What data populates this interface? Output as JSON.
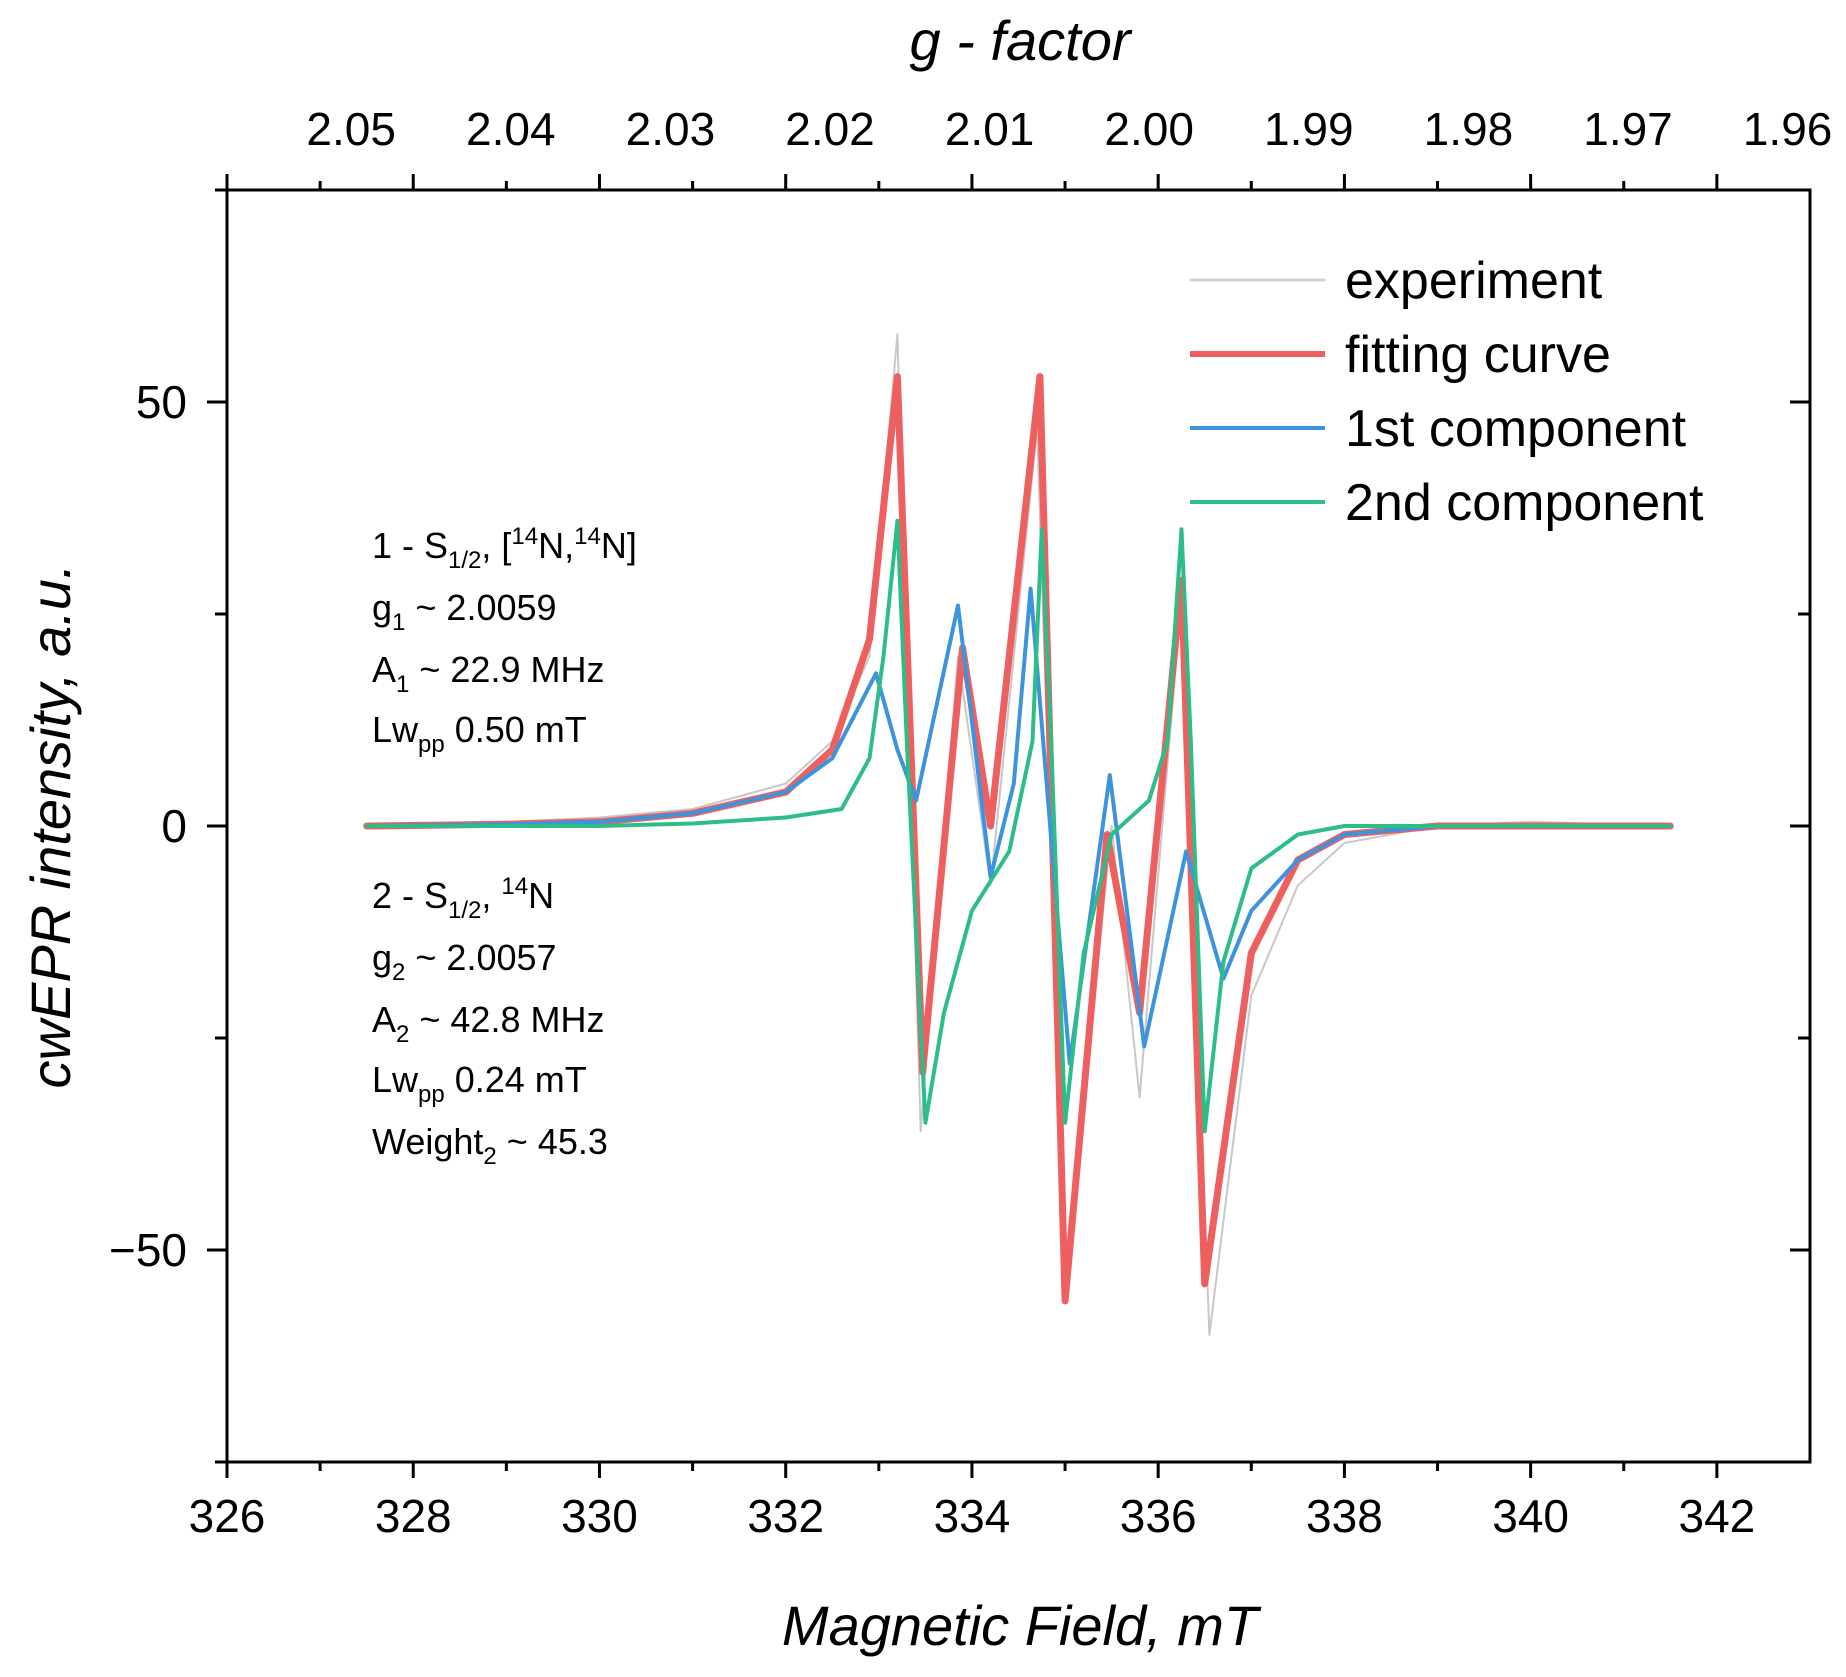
{
  "chart_data": {
    "type": "line",
    "xlabel": "Magnetic Field, mT",
    "ylabel": "cwEPR intensity, a.u.",
    "top_axis_label": "g - factor",
    "xlim": [
      326,
      343
    ],
    "ylim": [
      -75,
      75
    ],
    "x_ticks": [
      326,
      328,
      330,
      332,
      334,
      336,
      338,
      340,
      342
    ],
    "y_ticks": [
      -50,
      0,
      50
    ],
    "g_ticks": [
      "2.05",
      "2.04",
      "2.03",
      "2.02",
      "2.01",
      "2.00",
      "1.99",
      "1.98",
      "1.97",
      "1.96"
    ],
    "grid": false,
    "legend_position": "top-right",
    "series": [
      {
        "name": "experiment",
        "color": "#c8c8c8",
        "points": [
          [
            327.5,
            0
          ],
          [
            329,
            0.5
          ],
          [
            330,
            1
          ],
          [
            331,
            2
          ],
          [
            332,
            5
          ],
          [
            332.5,
            10
          ],
          [
            332.9,
            20
          ],
          [
            333.2,
            58
          ],
          [
            333.45,
            -36
          ],
          [
            333.85,
            20
          ],
          [
            334.2,
            -7
          ],
          [
            334.7,
            47
          ],
          [
            335.0,
            -55
          ],
          [
            335.5,
            0
          ],
          [
            335.8,
            -32
          ],
          [
            336.25,
            27
          ],
          [
            336.55,
            -60
          ],
          [
            337,
            -20
          ],
          [
            337.5,
            -7
          ],
          [
            338,
            -2
          ],
          [
            339,
            0
          ],
          [
            340,
            0.5
          ],
          [
            341.5,
            0
          ]
        ]
      },
      {
        "name": "fitting curve",
        "color": "#ee5f5f",
        "points": [
          [
            327.5,
            0
          ],
          [
            329,
            0.2
          ],
          [
            330,
            0.5
          ],
          [
            331,
            1.5
          ],
          [
            332,
            4
          ],
          [
            332.5,
            9
          ],
          [
            332.9,
            22
          ],
          [
            333.2,
            53
          ],
          [
            333.47,
            -29
          ],
          [
            333.9,
            21
          ],
          [
            334.2,
            0
          ],
          [
            334.73,
            53
          ],
          [
            335.0,
            -56
          ],
          [
            335.45,
            -1
          ],
          [
            335.8,
            -22
          ],
          [
            336.25,
            29
          ],
          [
            336.5,
            -54
          ],
          [
            337,
            -15
          ],
          [
            337.5,
            -4
          ],
          [
            338,
            -1
          ],
          [
            339,
            0
          ],
          [
            340,
            0
          ],
          [
            341.5,
            0
          ]
        ]
      },
      {
        "name": "1st component",
        "color": "#3d94dc",
        "points": [
          [
            327.5,
            0
          ],
          [
            329,
            0.2
          ],
          [
            330,
            0.5
          ],
          [
            331,
            1.5
          ],
          [
            332,
            4
          ],
          [
            332.5,
            8
          ],
          [
            332.97,
            18
          ],
          [
            333.2,
            9
          ],
          [
            333.4,
            3
          ],
          [
            333.85,
            26
          ],
          [
            334.2,
            -6
          ],
          [
            334.45,
            5
          ],
          [
            334.63,
            28
          ],
          [
            335.05,
            -28
          ],
          [
            335.48,
            6
          ],
          [
            335.85,
            -26
          ],
          [
            336.3,
            -3
          ],
          [
            336.7,
            -18
          ],
          [
            337,
            -10
          ],
          [
            337.5,
            -4
          ],
          [
            338,
            -1
          ],
          [
            339,
            0
          ],
          [
            340,
            0
          ],
          [
            341.5,
            0
          ]
        ]
      },
      {
        "name": "2nd component",
        "color": "#2dbd88",
        "points": [
          [
            327.5,
            0
          ],
          [
            330,
            0
          ],
          [
            331,
            0.3
          ],
          [
            332,
            1
          ],
          [
            332.6,
            2
          ],
          [
            332.9,
            8
          ],
          [
            333.05,
            20
          ],
          [
            333.2,
            36
          ],
          [
            333.3,
            10
          ],
          [
            333.5,
            -35
          ],
          [
            333.7,
            -22
          ],
          [
            334,
            -10
          ],
          [
            334.4,
            -3
          ],
          [
            334.65,
            10
          ],
          [
            334.75,
            35
          ],
          [
            334.85,
            10
          ],
          [
            335.0,
            -35
          ],
          [
            335.2,
            -15
          ],
          [
            335.5,
            -1
          ],
          [
            335.9,
            3
          ],
          [
            336.1,
            10
          ],
          [
            336.25,
            35
          ],
          [
            336.35,
            10
          ],
          [
            336.5,
            -36
          ],
          [
            336.7,
            -16
          ],
          [
            337,
            -5
          ],
          [
            337.5,
            -1
          ],
          [
            338,
            0
          ],
          [
            339,
            0
          ],
          [
            341.5,
            0
          ]
        ]
      }
    ]
  },
  "annotation1": {
    "line1_prefix": "1 - S",
    "line1_sub": "1/2",
    "line1_mid": ", [",
    "line1_sup1": "14",
    "line1_n1": "N,",
    "line1_sup2": "14",
    "line1_n2": "N]",
    "line2_prefix": "g",
    "line2_sub": "1",
    "line2_rest": " ~ 2.0059",
    "line3_prefix": "A",
    "line3_sub": "1",
    "line3_rest": " ~ 22.9 MHz",
    "line4_prefix": "Lw",
    "line4_sub": "pp",
    "line4_rest": " 0.50 mT"
  },
  "annotation2": {
    "line1_prefix": "2 - S",
    "line1_sub": "1/2",
    "line1_mid": ", ",
    "line1_sup": "14",
    "line1_n": "N",
    "line2_prefix": "g",
    "line2_sub": "2",
    "line2_rest": " ~ 2.0057",
    "line3_prefix": "A",
    "line3_sub": "2",
    "line3_rest": " ~ 42.8 MHz",
    "line4_prefix": "Lw",
    "line4_sub": "pp",
    "line4_rest": " 0.24 mT",
    "line5_prefix": "Weight",
    "line5_sub": "2",
    "line5_rest": " ~ 45.3"
  }
}
